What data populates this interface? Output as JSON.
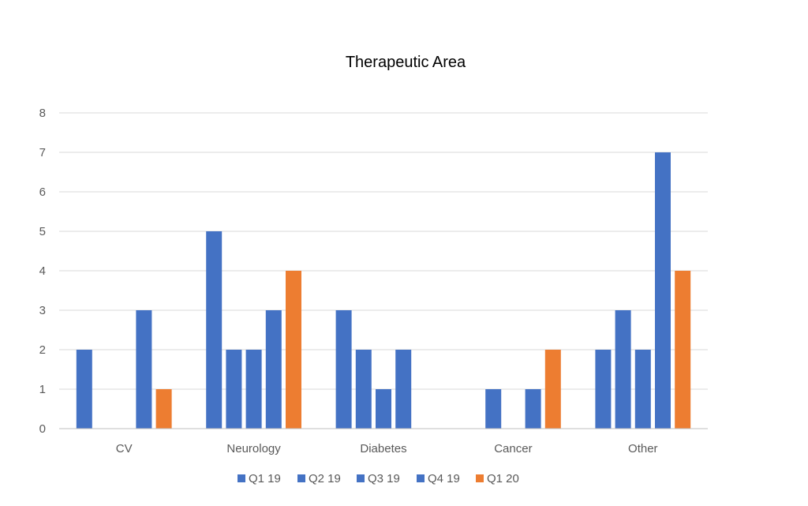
{
  "chart_data": {
    "type": "bar",
    "title": "Therapeutic Area",
    "categories": [
      "CV",
      "Neurology",
      "Diabetes",
      "Cancer",
      "Other"
    ],
    "series": [
      {
        "name": "Q1 19",
        "color": "#4472c4",
        "values": [
          2,
          5,
          3,
          0,
          2
        ]
      },
      {
        "name": "Q2 19",
        "color": "#4472c4",
        "values": [
          0,
          2,
          2,
          1,
          3
        ]
      },
      {
        "name": "Q3 19",
        "color": "#4472c4",
        "values": [
          0,
          2,
          1,
          0,
          2
        ]
      },
      {
        "name": "Q4 19",
        "color": "#4472c4",
        "values": [
          3,
          3,
          2,
          1,
          7
        ]
      },
      {
        "name": "Q1 20",
        "color": "#ed7d31",
        "values": [
          1,
          4,
          0,
          2,
          4
        ]
      }
    ],
    "ylim": [
      0,
      8
    ],
    "yticks": [
      0,
      1,
      2,
      3,
      4,
      5,
      6,
      7,
      8
    ],
    "grid": true,
    "legend_position": "bottom"
  }
}
